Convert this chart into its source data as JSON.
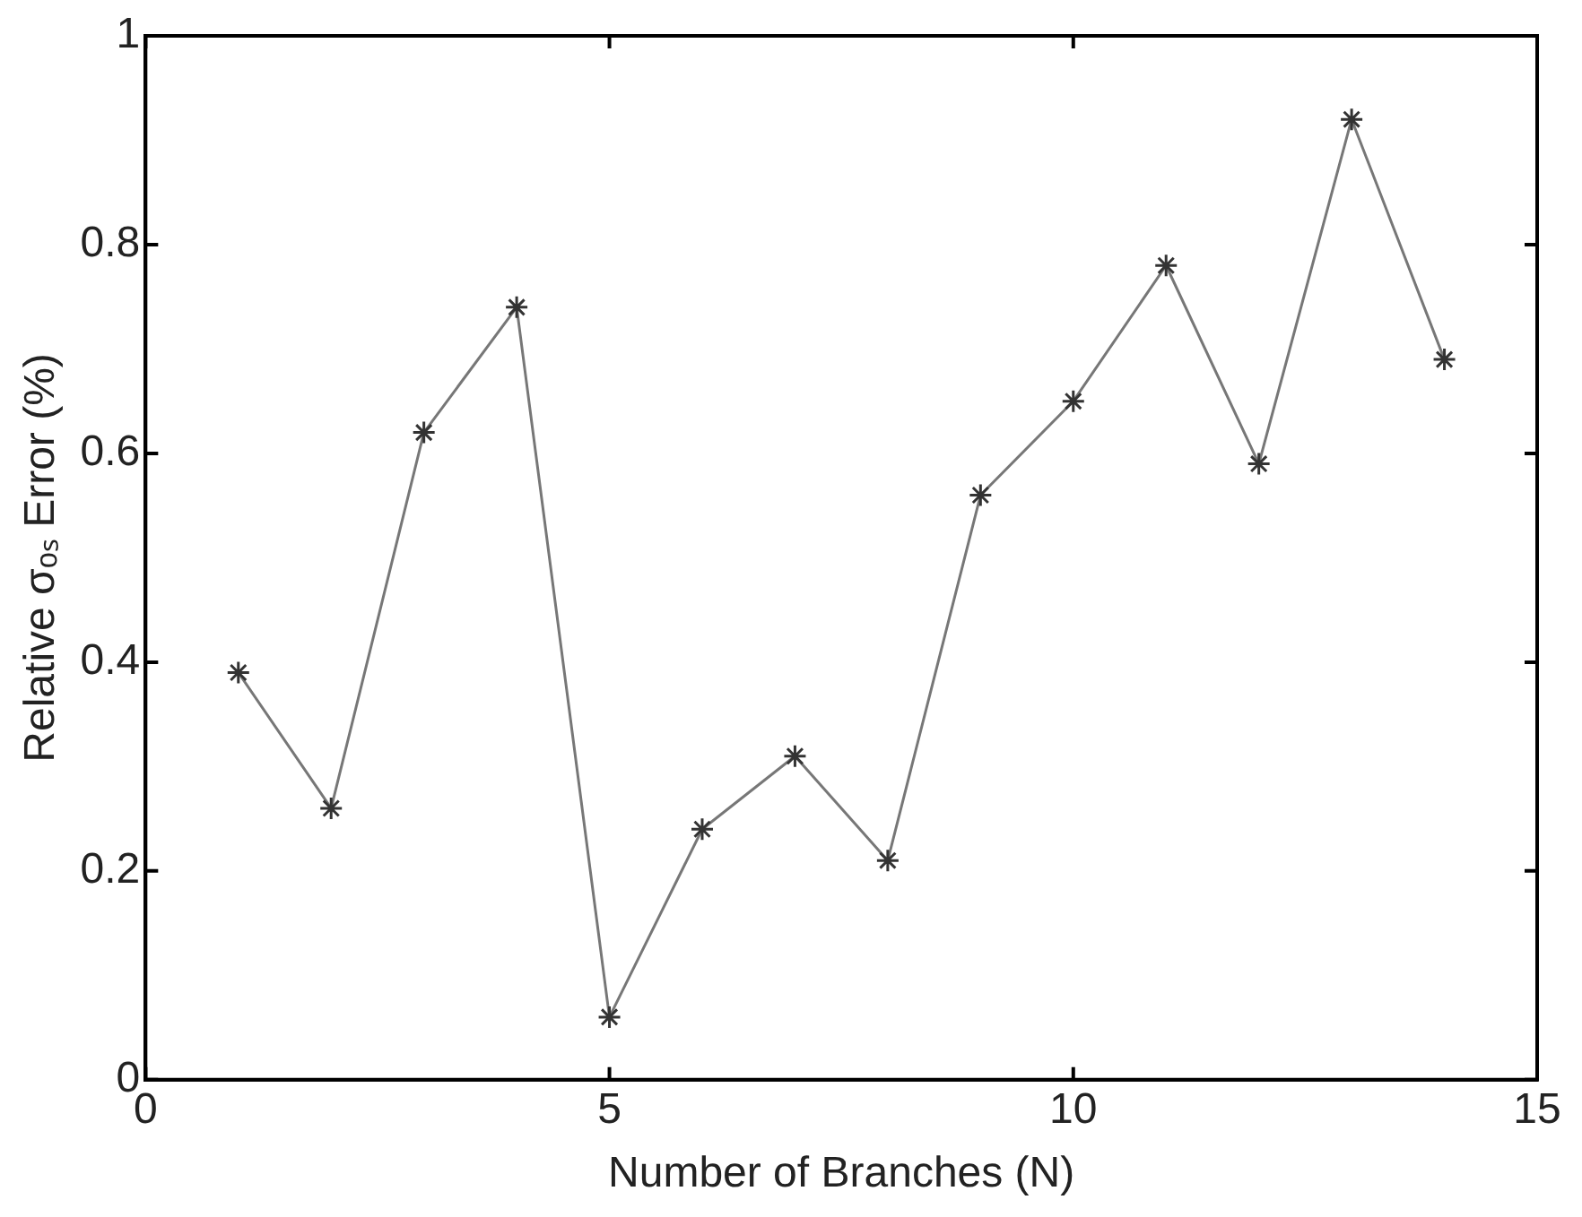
{
  "chart_data": {
    "type": "line",
    "xlabel": "Number of Branches (N)",
    "ylabel": "Relative σₒₛ Error (%)",
    "x": [
      1,
      2,
      3,
      4,
      5,
      6,
      7,
      8,
      9,
      10,
      11,
      12,
      13,
      14
    ],
    "series": [
      {
        "color": "#777777",
        "values": [
          0.39,
          0.26,
          0.62,
          0.74,
          0.06,
          0.24,
          0.31,
          0.21,
          0.56,
          0.65,
          0.78,
          0.59,
          0.92,
          0.69
        ]
      }
    ],
    "xlim": [
      0,
      15
    ],
    "xticks": [
      0,
      5,
      10,
      15
    ],
    "ylim": [
      0,
      1
    ],
    "yticks": [
      0,
      0.2,
      0.4,
      0.6,
      0.8,
      1
    ],
    "grid": false,
    "legend": false,
    "marker": "cross",
    "line_style": "solid"
  }
}
